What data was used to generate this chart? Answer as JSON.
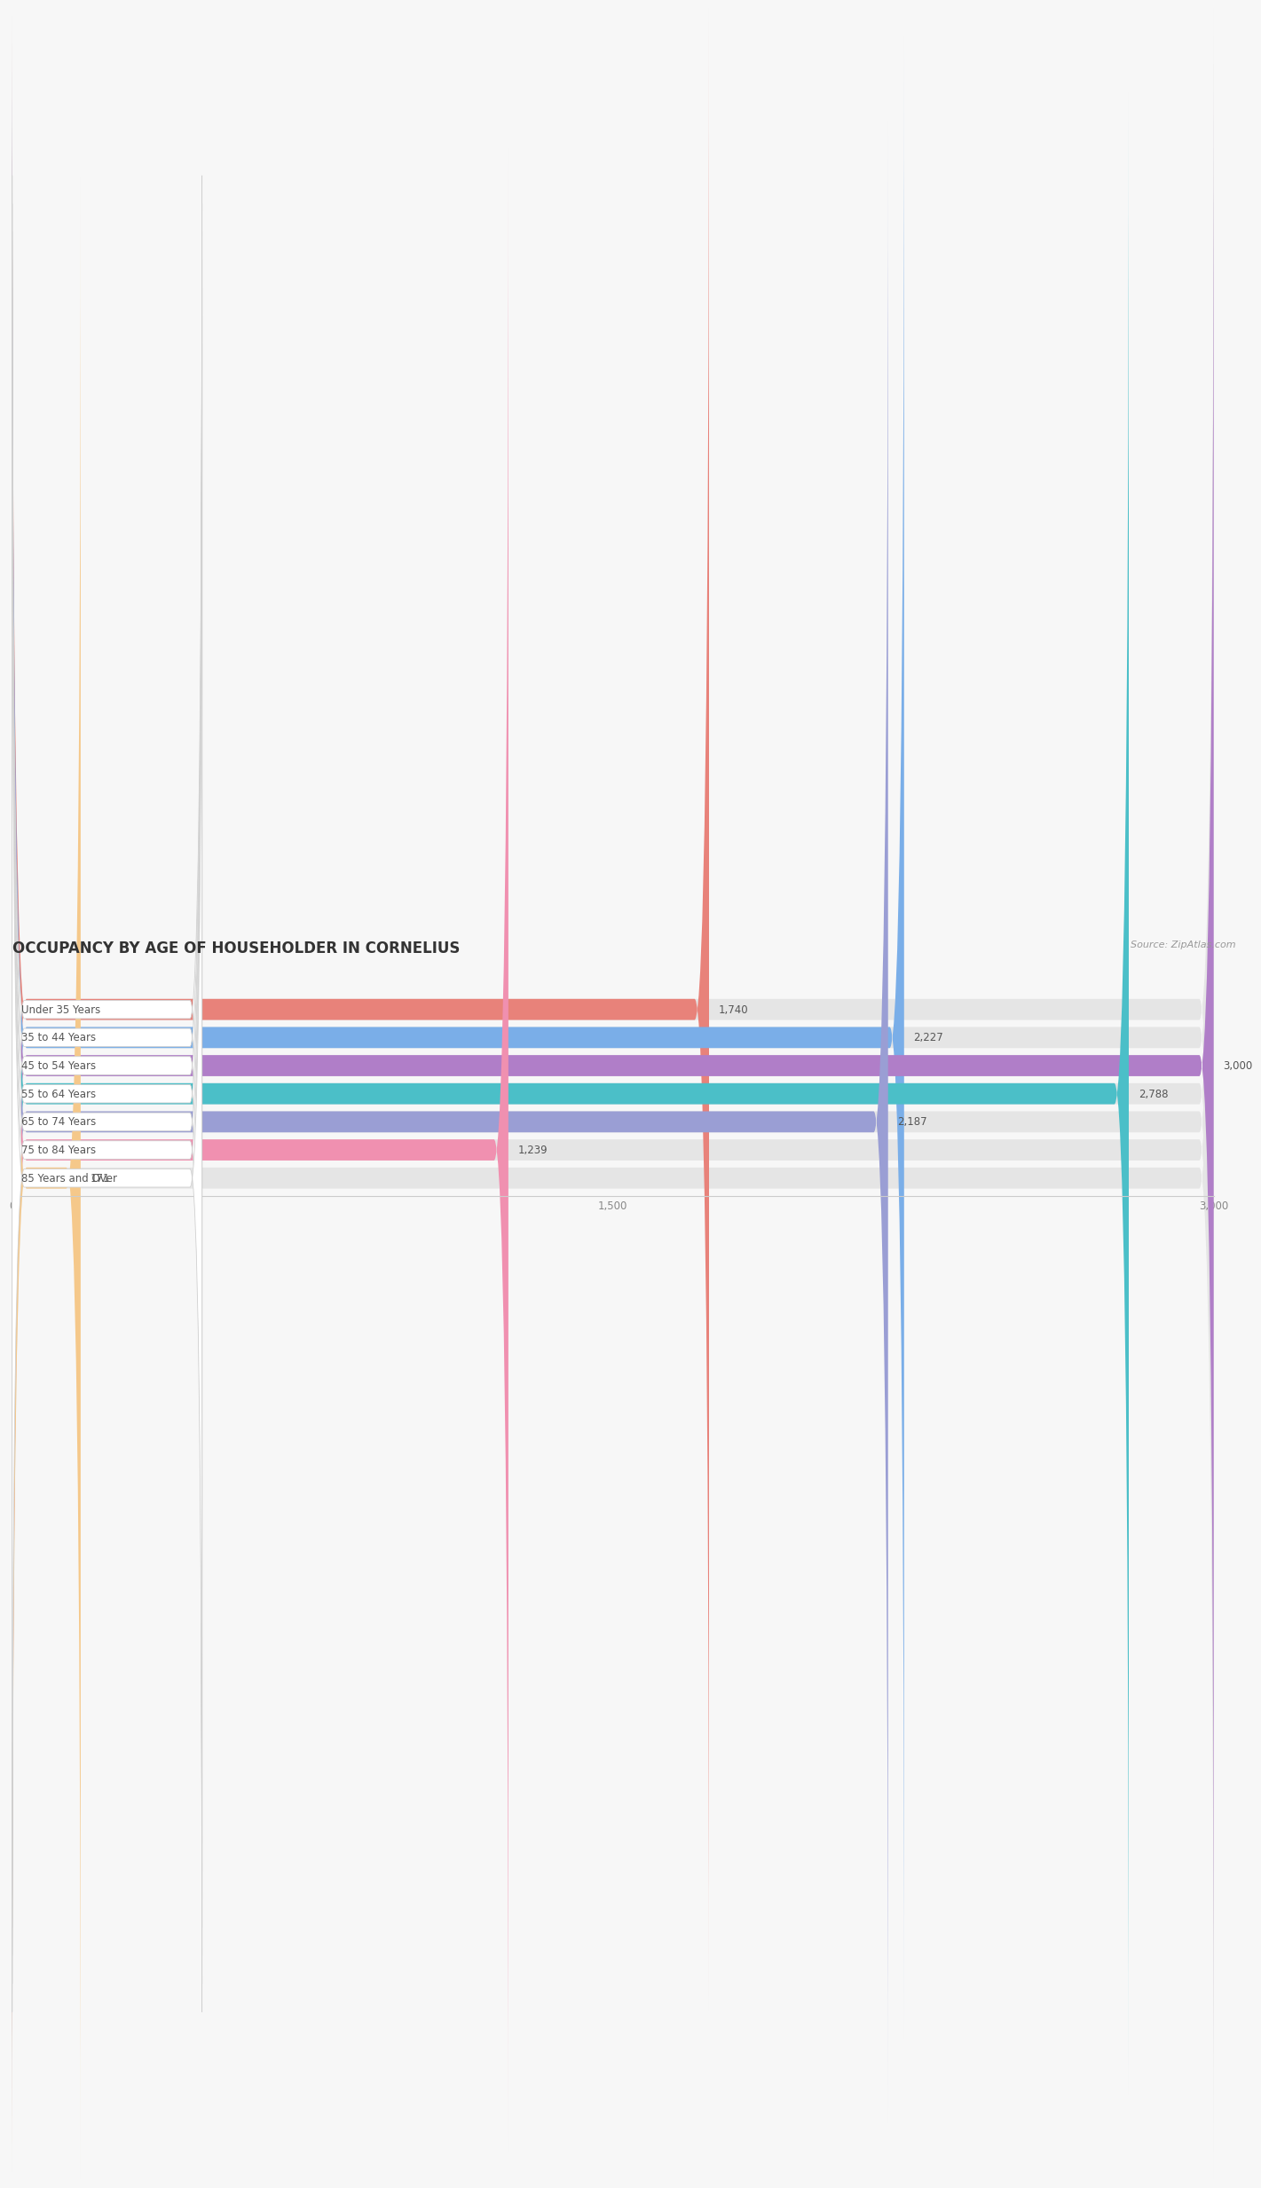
{
  "title": "OCCUPANCY BY AGE OF HOUSEHOLDER IN CORNELIUS",
  "source": "Source: ZipAtlas.com",
  "categories": [
    "Under 35 Years",
    "35 to 44 Years",
    "45 to 54 Years",
    "55 to 64 Years",
    "65 to 74 Years",
    "75 to 84 Years",
    "85 Years and Over"
  ],
  "values": [
    1740,
    2227,
    3000,
    2788,
    2187,
    1239,
    171
  ],
  "bar_colors": [
    "#e8827a",
    "#7aaee8",
    "#b07ec8",
    "#4bbfc8",
    "#9a9ed4",
    "#f090b0",
    "#f5c88a"
  ],
  "bar_bg_color": "#e5e5e5",
  "background_color": "#f7f7f7",
  "xlim": [
    0,
    3000
  ],
  "xticks": [
    0,
    1500,
    3000
  ],
  "title_fontsize": 12,
  "label_fontsize": 8.5,
  "value_fontsize": 8.5,
  "source_fontsize": 8
}
